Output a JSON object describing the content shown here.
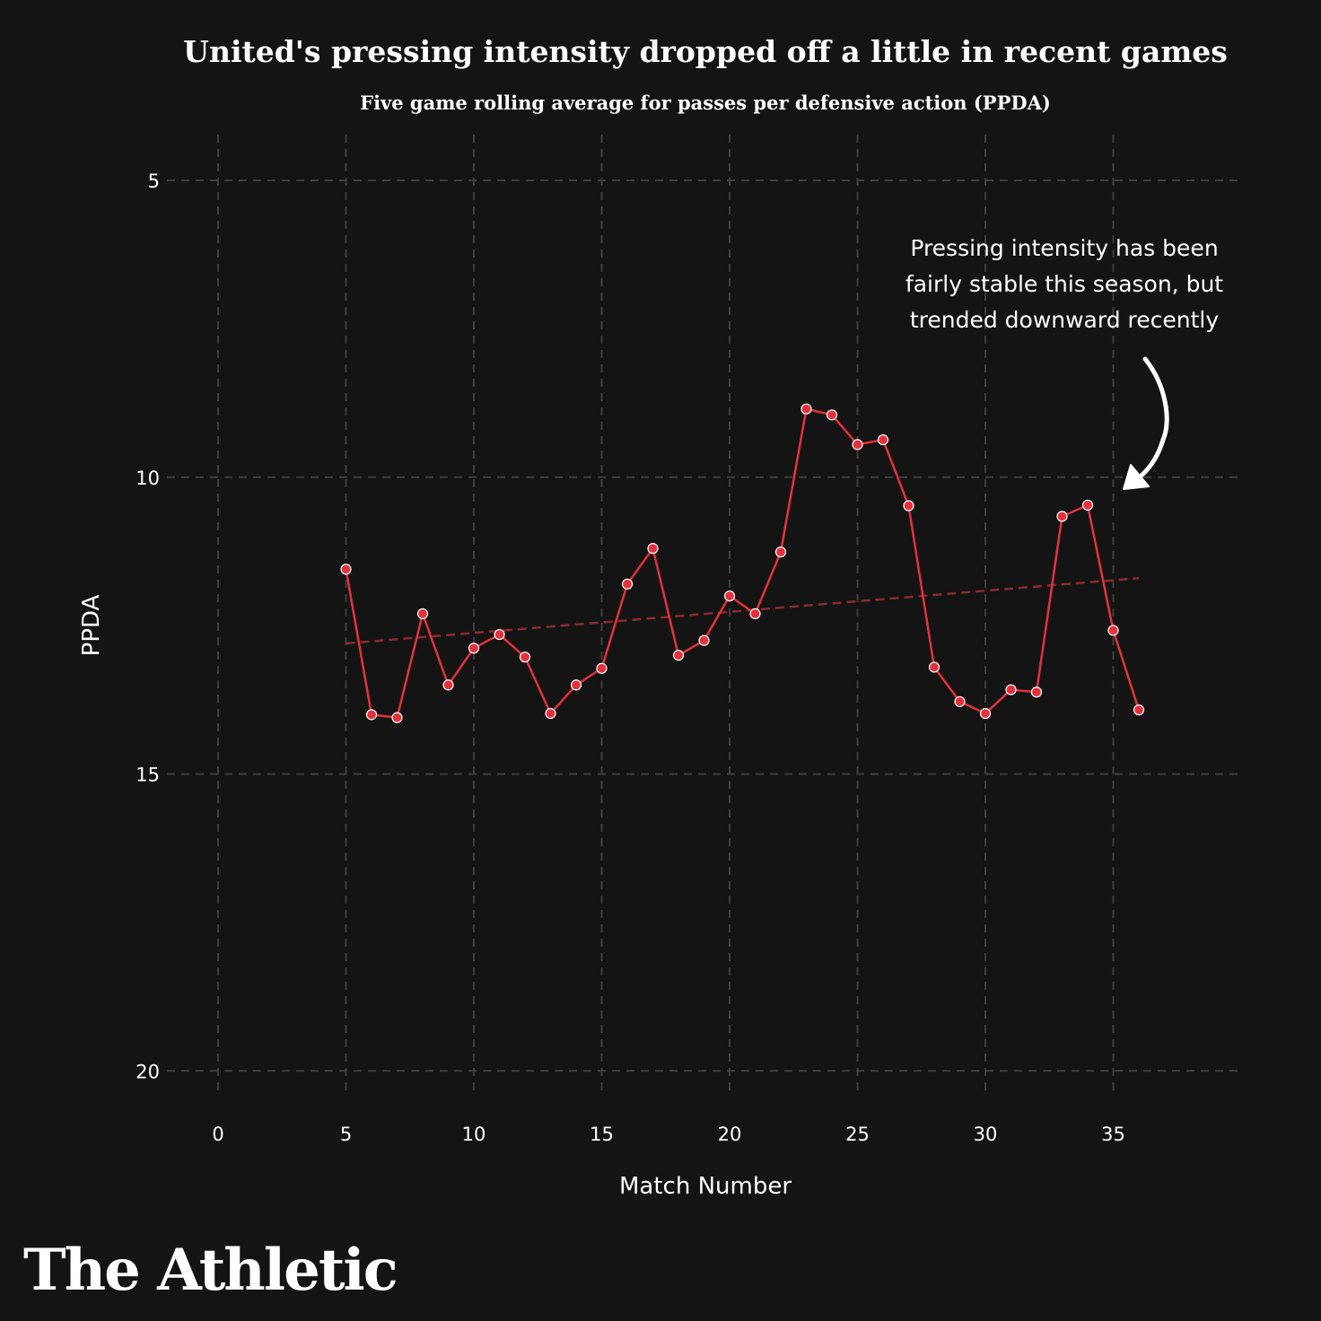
{
  "title": "United's pressing intensity dropped off a little in recent games",
  "subtitle": "Five game rolling average for passes per defensive action (PPDA)",
  "brand": "The Athletic",
  "annotation": {
    "lines": [
      "Pressing intensity has been",
      "fairly stable this season, but",
      "trended downward recently"
    ]
  },
  "colors": {
    "background": "#141414",
    "series": "#e2323d",
    "trend": "#8c2a2f",
    "grid": "#3d3d3d",
    "text": "#ffffff"
  },
  "chart_data": {
    "type": "line",
    "xlabel": "Match Number",
    "ylabel": "PPDA",
    "xlim": [
      0,
      40
    ],
    "ylim": [
      5,
      20
    ],
    "y_inverted": true,
    "grid": true,
    "x_ticks": [
      0,
      5,
      10,
      15,
      20,
      25,
      30,
      35
    ],
    "y_ticks": [
      5,
      10,
      15,
      20
    ],
    "series": [
      {
        "x": [
          5,
          6,
          7,
          8,
          9,
          10,
          11,
          12,
          13,
          14,
          15,
          16,
          17,
          18,
          19,
          20,
          21,
          22,
          23,
          24,
          25,
          26,
          27,
          28,
          29,
          30,
          31,
          32,
          33,
          34,
          35,
          36
        ],
        "values": [
          11.55,
          14.0,
          14.05,
          12.3,
          13.5,
          12.88,
          12.65,
          13.03,
          13.98,
          13.5,
          13.22,
          11.8,
          11.2,
          13.0,
          12.75,
          12.0,
          12.3,
          11.26,
          8.85,
          8.95,
          9.45,
          9.37,
          10.48,
          13.2,
          13.78,
          13.98,
          13.58,
          13.62,
          10.66,
          10.47,
          12.58,
          13.92
        ]
      }
    ],
    "trend": {
      "style": "dashed",
      "x": [
        5,
        36
      ],
      "values": [
        12.8,
        11.7
      ]
    }
  }
}
